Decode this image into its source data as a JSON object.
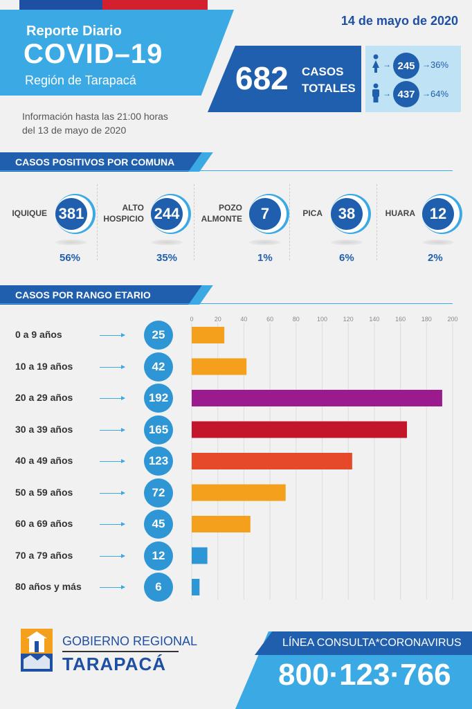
{
  "header": {
    "report_title": "Reporte Diario",
    "covid_title": "COVID–19",
    "region": "Región de Tarapacá",
    "date": "14 de mayo de 2020",
    "info_line1": "Información hasta las 21:00 horas",
    "info_line2": "del 13 de mayo de 2020"
  },
  "totals": {
    "total": "682",
    "label_line1": "CASOS",
    "label_line2": "TOTALES",
    "women": {
      "count": "245",
      "pct": "36%",
      "icon": "female-icon"
    },
    "men": {
      "count": "437",
      "pct": "64%",
      "icon": "male-icon"
    }
  },
  "comunas_section": {
    "title": "CASOS POSITIVOS POR COMUNA"
  },
  "comunas": [
    {
      "name_l1": "IQUIQUE",
      "name_l2": "",
      "count": "381",
      "pct": "56%"
    },
    {
      "name_l1": "ALTO",
      "name_l2": "HOSPICIO",
      "count": "244",
      "pct": "35%"
    },
    {
      "name_l1": "POZO",
      "name_l2": "ALMONTE",
      "count": "7",
      "pct": "1%"
    },
    {
      "name_l1": "PICA",
      "name_l2": "",
      "count": "38",
      "pct": "6%"
    },
    {
      "name_l1": "HUARA",
      "name_l2": "",
      "count": "12",
      "pct": "2%"
    }
  ],
  "age_section": {
    "title": "CASOS POR RANGO ETARIO"
  },
  "chart_data": {
    "type": "bar",
    "orientation": "horizontal",
    "categories": [
      "0 a 9 años",
      "10 a 19 años",
      "20 a 29 años",
      "30 a 39 años",
      "40 a 49 años",
      "50 a 59 años",
      "60 a 69 años",
      "70 a 79 años",
      "80 años y más"
    ],
    "values": [
      25,
      42,
      192,
      165,
      123,
      72,
      45,
      12,
      6
    ],
    "colors": [
      "#f5a01d",
      "#f5a01d",
      "#9b1b8f",
      "#c4162a",
      "#e6492a",
      "#f5a01d",
      "#f5a01d",
      "#2f96d6",
      "#2f96d6"
    ],
    "xticks": [
      0,
      20,
      40,
      60,
      80,
      100,
      120,
      140,
      160,
      180,
      200
    ],
    "xlim": [
      0,
      200
    ],
    "grid": true
  },
  "footer": {
    "gob_regional": "GOBIERNO REGIONAL",
    "tarapaca": "TARAPACÁ",
    "line_consulta": "LÍNEA CONSULTA*CORONAVIRUS",
    "phone": "800·123·766"
  },
  "colors": {
    "dark_blue": "#1f5fae",
    "light_blue": "#3aa9e4",
    "flag_red": "#d3202e"
  }
}
